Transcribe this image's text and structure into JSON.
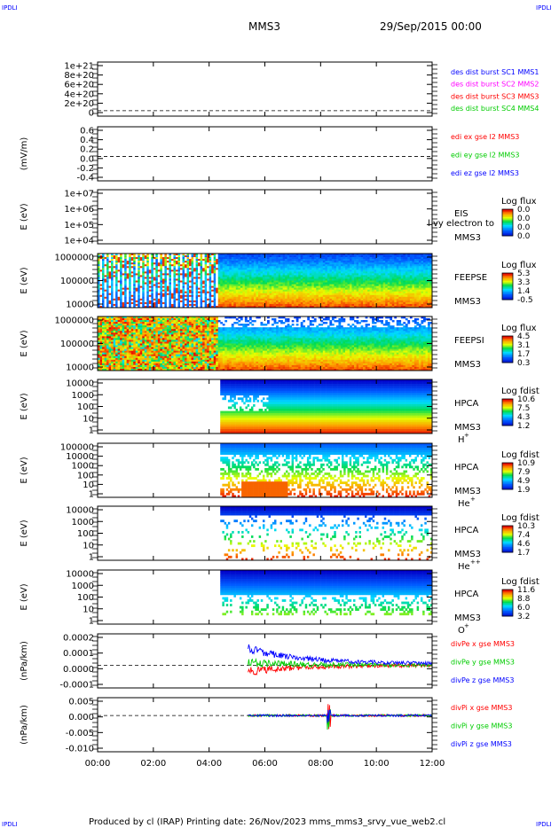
{
  "corner_marks": {
    "tl": "IPDLI",
    "tr": "IPDLI",
    "bl": "IPDLI",
    "br": "IPDLI"
  },
  "header": {
    "spacecraft": "MMS3",
    "date": "29/Sep/2015 00:00"
  },
  "footer": "Produced by cl (IRAP)   Printing date: 26/Nov/2023   mms_mms3_srvy_vue_web2.cl",
  "colors": {
    "red": "#ff0000",
    "green": "#00cc00",
    "blue": "#0000ff",
    "magenta": "#ff00ff",
    "frame": "#000000"
  },
  "chart_data": {
    "x_ticks": [
      "00:00",
      "02:00",
      "04:00",
      "06:00",
      "08:00",
      "10:00",
      "12:00"
    ],
    "x_range_hours": [
      0,
      12
    ],
    "panels": [
      {
        "id": "des-dist",
        "type": "line",
        "ylabel": "",
        "ticks": [
          "1e+21",
          "8e+20",
          "6e+20",
          "4e+20",
          "2e+20",
          "0"
        ],
        "legend": [
          {
            "text": "des dist burst SC1 MMS1",
            "color": "#0000ff"
          },
          {
            "text": "des dist burst SC2 MMS2",
            "color": "#ff00ff"
          },
          {
            "text": "des dist burst SC3 MMS3",
            "color": "#ff0000"
          },
          {
            "text": "des dist burst SC4 MMS4",
            "color": "#00cc00"
          }
        ],
        "zero_line": true
      },
      {
        "id": "edi-e",
        "type": "line",
        "ylabel": "(mV/m)",
        "ticks": [
          "0.6",
          "0.4",
          "0.2",
          "0.0",
          "-0.2",
          "-0.4"
        ],
        "legend": [
          {
            "text": "edi ex gse l2 MMS3",
            "color": "#ff0000"
          },
          {
            "text": "edi ey gse l2 MMS3",
            "color": "#00cc00"
          },
          {
            "text": "edi ez gse l2 MMS3",
            "color": "#0000ff"
          }
        ],
        "zero_line": true
      },
      {
        "id": "eis",
        "type": "heatmap",
        "ylabel": "E (eV)",
        "ticks": [
          "1e+07",
          "1e+06",
          "1e+05",
          "1e+04"
        ],
        "instrument": [
          "EIS",
          "MMS3"
        ],
        "overlap_text": "l vy electron to",
        "cbar": {
          "title": "Log flux",
          "values": [
            "0.0",
            "0.0",
            "0.0",
            "0.0"
          ]
        },
        "start": null
      },
      {
        "id": "feepse",
        "type": "heatmap",
        "ylabel": "E (eV)",
        "ticks": [
          "1000000",
          "100000",
          "10000"
        ],
        "instrument": [
          "FEEPSE",
          "MMS3"
        ],
        "cbar": {
          "title": "Log flux",
          "values": [
            "5.3",
            "3.3",
            "1.4",
            "-0.5"
          ]
        },
        "start": 0.0,
        "style": "feeps"
      },
      {
        "id": "feepsi",
        "type": "heatmap",
        "ylabel": "E (eV)",
        "ticks": [
          "1000000",
          "100000",
          "10000"
        ],
        "instrument": [
          "FEEPSI",
          "MMS3"
        ],
        "cbar": {
          "title": "Log flux",
          "values": [
            "4.5",
            "3.1",
            "1.7",
            "0.3"
          ]
        },
        "start": 0.0,
        "style": "feeps"
      },
      {
        "id": "hpca-h",
        "type": "heatmap",
        "ylabel": "E (eV)",
        "ticks": [
          "10000",
          "1000",
          "100",
          "10",
          "1"
        ],
        "instrument": [
          "HPCA",
          "MMS3"
        ],
        "species": "H",
        "charge": "+",
        "cbar": {
          "title": "Log fdist",
          "values": [
            "10.6",
            "7.5",
            "4.3",
            "1.2"
          ]
        },
        "start": 4.4,
        "style": "h"
      },
      {
        "id": "hpca-he",
        "type": "heatmap",
        "ylabel": "E (eV)",
        "ticks": [
          "100000",
          "10000",
          "1000",
          "100",
          "10",
          "1"
        ],
        "instrument": [
          "HPCA",
          "MMS3"
        ],
        "species": "He",
        "charge": "+",
        "cbar": {
          "title": "Log fdist",
          "values": [
            "10.9",
            "7.9",
            "4.9",
            "1.9"
          ]
        },
        "start": 4.4,
        "style": "he"
      },
      {
        "id": "hpca-he2",
        "type": "heatmap",
        "ylabel": "E (eV)",
        "ticks": [
          "10000",
          "1000",
          "100",
          "10",
          "1"
        ],
        "instrument": [
          "HPCA",
          "MMS3"
        ],
        "species": "He",
        "charge": "++",
        "cbar": {
          "title": "Log fdist",
          "values": [
            "10.3",
            "7.4",
            "4.6",
            "1.7"
          ]
        },
        "start": 4.4,
        "style": "sparse"
      },
      {
        "id": "hpca-o",
        "type": "heatmap",
        "ylabel": "E (eV)",
        "ticks": [
          "10000",
          "1000",
          "100",
          "10",
          "1"
        ],
        "instrument": [
          "HPCA",
          "MMS3"
        ],
        "species": "O",
        "charge": "+",
        "cbar": {
          "title": "Log fdist",
          "values": [
            "11.6",
            "8.8",
            "6.0",
            "3.2"
          ]
        },
        "start": 4.4,
        "style": "o"
      },
      {
        "id": "divpe",
        "type": "line",
        "ylabel": "(nPa/km)",
        "ticks": [
          "0.0002",
          "0.0001",
          "0.0000",
          "-0.0001"
        ],
        "legend": [
          {
            "text": "divPe x gse MMS3",
            "color": "#ff0000"
          },
          {
            "text": "divPe y gse MMS3",
            "color": "#00cc00"
          },
          {
            "text": "divPe z gse MMS3",
            "color": "#0000ff"
          }
        ],
        "zero_line": true,
        "start": 5.4,
        "style": "divpe"
      },
      {
        "id": "divpi",
        "type": "line",
        "ylabel": "(nPa/km)",
        "ticks": [
          "0.005",
          "0.000",
          "-0.005",
          "-0.010"
        ],
        "legend": [
          {
            "text": "divPi x gse MMS3",
            "color": "#ff0000"
          },
          {
            "text": "divPi y gse MMS3",
            "color": "#00cc00"
          },
          {
            "text": "divPi z gse MMS3",
            "color": "#0000ff"
          }
        ],
        "zero_line": true,
        "start": 5.4,
        "style": "divpi"
      }
    ]
  }
}
